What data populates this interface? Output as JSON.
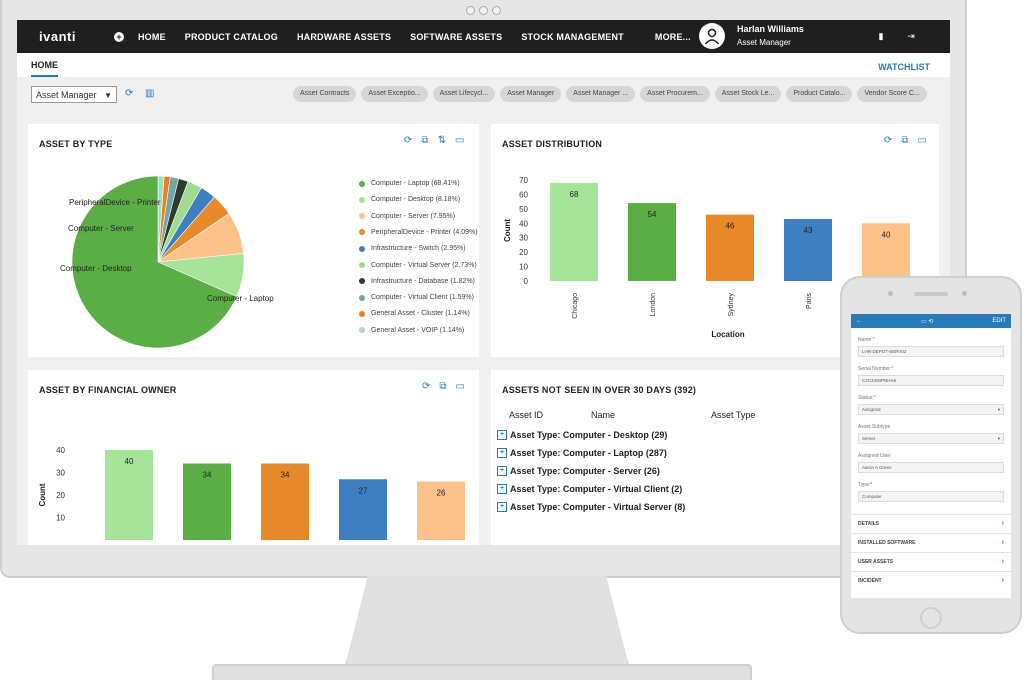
{
  "header": {
    "logo": "ivanti",
    "nav": [
      "HOME",
      "PRODUCT CATALOG",
      "HARDWARE ASSETS",
      "SOFTWARE ASSETS",
      "STOCK MANAGEMENT",
      "MORE..."
    ],
    "user_name": "Harlan Williams",
    "user_role": "Asset Manager"
  },
  "tabs": {
    "home": "HOME",
    "watchlist": "WATCHLIST"
  },
  "filter": {
    "dropdown_value": "Asset Manager",
    "pills": [
      "Asset Contracts",
      "Asset Exceptio...",
      "Asset Lifecycl...",
      "Asset Manager",
      "Asset Manager ...",
      "Asset Procurem...",
      "Asset Stock Le...",
      "Product Catalo...",
      "Vendor Score C..."
    ]
  },
  "asset_by_type": {
    "title": "ASSET BY TYPE",
    "pie_labels": [
      "PeripheralDevice - Printer",
      "Computer - Server",
      "Computer - Desktop",
      "Computer - Laptop"
    ]
  },
  "asset_distribution": {
    "title": "ASSET DISTRIBUTION"
  },
  "asset_by_owner": {
    "title": "ASSET BY FINANCIAL OWNER"
  },
  "not_seen": {
    "title": "ASSETS NOT SEEN IN OVER 30 DAYS (392)",
    "columns": [
      "Asset ID",
      "Name",
      "Asset Type"
    ],
    "rows": [
      "Asset Type: Computer - Desktop (29)",
      "Asset Type: Computer - Laptop (287)",
      "Asset Type: Computer - Server (26)",
      "Asset Type: Computer - Virtual Client (2)",
      "Asset Type: Computer - Virtual Server (8)"
    ]
  },
  "mobile": {
    "edit": "EDIT",
    "fields": [
      {
        "label": "Name:*",
        "value": "LHR-DEPOT-SERV02",
        "select": false
      },
      {
        "label": "Serial Number:*",
        "value": "C2C3400PNHA8",
        "select": false
      },
      {
        "label": "Status:*",
        "value": "Assigned",
        "select": true
      },
      {
        "label": "Asset Subtype",
        "value": "Server",
        "select": true
      },
      {
        "label": "Assigned User",
        "value": "Aaron A Green",
        "select": false
      },
      {
        "label": "Type:*",
        "value": "Computer",
        "select": false
      }
    ],
    "sections": [
      "DETAILS",
      "INSTALLED SOFTWARE",
      "USER ASSETS",
      "INCIDENT"
    ]
  },
  "colors": {
    "accent": "#2a7ab8",
    "topbar": "#1f1f1f"
  },
  "chart_data": [
    {
      "type": "pie",
      "title": "ASSET BY TYPE",
      "legend_position": "right",
      "slices": [
        {
          "label": "Computer - Laptop (68.41%)",
          "value": 68.41,
          "color": "#5aae45"
        },
        {
          "label": "Computer - Desktop (8.18%)",
          "value": 8.18,
          "color": "#a8e39a"
        },
        {
          "label": "Computer - Server (7.95%)",
          "value": 7.95,
          "color": "#fcc28a"
        },
        {
          "label": "PeripheralDevice - Printer (4.09%)",
          "value": 4.09,
          "color": "#e8892b"
        },
        {
          "label": "Infrastructure - Switch (2.95%)",
          "value": 2.95,
          "color": "#3d7fc0"
        },
        {
          "label": "Computer - Virtual Server (2.73%)",
          "value": 2.73,
          "color": "#9fdc8f"
        },
        {
          "label": "Infrastructure - Database (1.82%)",
          "value": 1.82,
          "color": "#2b3d2b"
        },
        {
          "label": "Computer - Virtual Client (1.59%)",
          "value": 1.59,
          "color": "#72a5a5"
        },
        {
          "label": "General Asset - Cluster (1.14%)",
          "value": 1.14,
          "color": "#ee7e22"
        },
        {
          "label": "General Asset - VOIP (1.14%)",
          "value": 1.14,
          "color": "#9fe0c0"
        }
      ]
    },
    {
      "type": "bar",
      "title": "ASSET DISTRIBUTION",
      "categories": [
        "Chicago",
        "London",
        "Sydney",
        "Paris",
        ""
      ],
      "values": [
        68,
        54,
        46,
        43,
        40
      ],
      "colors": [
        "#a8e39a",
        "#5aae45",
        "#e8892b",
        "#3d7fc0",
        "#fcc28a"
      ],
      "xlabel": "Location",
      "ylabel": "Count",
      "ylim": [
        0,
        70
      ],
      "yticks": [
        0,
        10,
        20,
        30,
        40,
        50,
        60,
        70
      ],
      "data_labels": true
    },
    {
      "type": "bar",
      "title": "ASSET BY FINANCIAL OWNER",
      "categories": [
        "",
        "",
        "",
        "",
        ""
      ],
      "values": [
        40,
        34,
        34,
        27,
        26
      ],
      "colors": [
        "#a8e39a",
        "#5aae45",
        "#e8892b",
        "#3d7fc0",
        "#fcc28a"
      ],
      "xlabel": "",
      "ylabel": "Count",
      "ylim": [
        0,
        40
      ],
      "yticks": [
        10,
        20,
        30,
        40
      ],
      "data_labels": true
    }
  ]
}
